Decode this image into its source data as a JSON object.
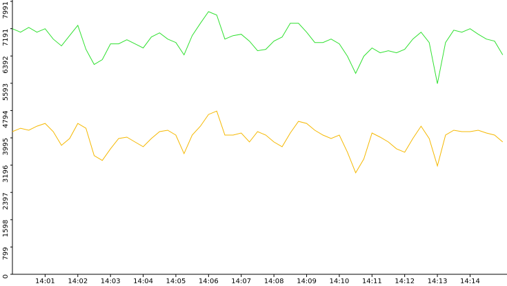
{
  "chart_data": {
    "type": "line",
    "x": [
      0,
      0.25,
      0.5,
      0.75,
      1,
      1.25,
      1.5,
      1.75,
      2,
      2.25,
      2.5,
      2.75,
      3,
      3.25,
      3.5,
      3.75,
      4,
      4.25,
      4.5,
      4.75,
      5,
      5.25,
      5.5,
      5.75,
      6,
      6.25,
      6.5,
      6.75,
      7,
      7.25,
      7.5,
      7.75,
      8,
      8.25,
      8.5,
      8.75,
      9,
      9.25,
      9.5,
      9.75,
      10,
      10.25,
      10.5,
      10.75,
      11,
      11.25,
      11.5,
      11.75,
      12,
      12.25,
      12.5,
      12.75,
      13,
      13.25,
      13.5,
      13.75,
      14,
      14.25,
      14.5,
      14.75,
      15
    ],
    "series": [
      {
        "color": "#2ee02e",
        "values": [
          7189,
          7088,
          7229,
          7088,
          7189,
          6887,
          6687,
          6988,
          7289,
          6586,
          6144,
          6285,
          6747,
          6747,
          6867,
          6747,
          6626,
          6948,
          7068,
          6887,
          6787,
          6426,
          6988,
          7349,
          7691,
          7590,
          6887,
          6988,
          7028,
          6827,
          6546,
          6586,
          6827,
          6948,
          7349,
          7349,
          7088,
          6787,
          6787,
          6887,
          6747,
          6385,
          5883,
          6385,
          6626,
          6486,
          6546,
          6486,
          6586,
          6887,
          7088,
          6787,
          5582,
          6787,
          7148,
          7088,
          7189,
          7028,
          6887,
          6827,
          6426
        ]
      },
      {
        "color": "#f5b800",
        "values": [
          4177,
          4277,
          4217,
          4337,
          4418,
          4177,
          3775,
          3976,
          4418,
          4277,
          3474,
          3333,
          3675,
          3976,
          4016,
          3875,
          3735,
          3976,
          4177,
          4217,
          4076,
          3534,
          4076,
          4337,
          4679,
          4779,
          4076,
          4076,
          4136,
          3875,
          4177,
          4076,
          3875,
          3735,
          4136,
          4478,
          4418,
          4217,
          4076,
          3976,
          4076,
          3574,
          2972,
          3373,
          4136,
          4016,
          3875,
          3675,
          3574,
          3976,
          4337,
          3976,
          3173,
          4076,
          4217,
          4177,
          4177,
          4217,
          4136,
          4076,
          3875
        ]
      }
    ],
    "xlim": [
      0,
      15.13
    ],
    "xticks": [
      {
        "value": 1,
        "label": "14:01"
      },
      {
        "value": 2,
        "label": "14:02"
      },
      {
        "value": 3,
        "label": "14:03"
      },
      {
        "value": 4,
        "label": "14:04"
      },
      {
        "value": 5,
        "label": "14:05"
      },
      {
        "value": 6,
        "label": "14:06"
      },
      {
        "value": 7,
        "label": "14:07"
      },
      {
        "value": 8,
        "label": "14:08"
      },
      {
        "value": 9,
        "label": "14:09"
      },
      {
        "value": 10,
        "label": "14:10"
      },
      {
        "value": 11,
        "label": "14:11"
      },
      {
        "value": 12,
        "label": "14:12"
      },
      {
        "value": 13,
        "label": "14:13"
      },
      {
        "value": 14,
        "label": "14:14"
      }
    ],
    "ylim": [
      0,
      7991
    ],
    "yticks": [
      0,
      799,
      1598,
      2397,
      3196,
      3995,
      4794,
      5593,
      6392,
      7191,
      7991
    ]
  }
}
